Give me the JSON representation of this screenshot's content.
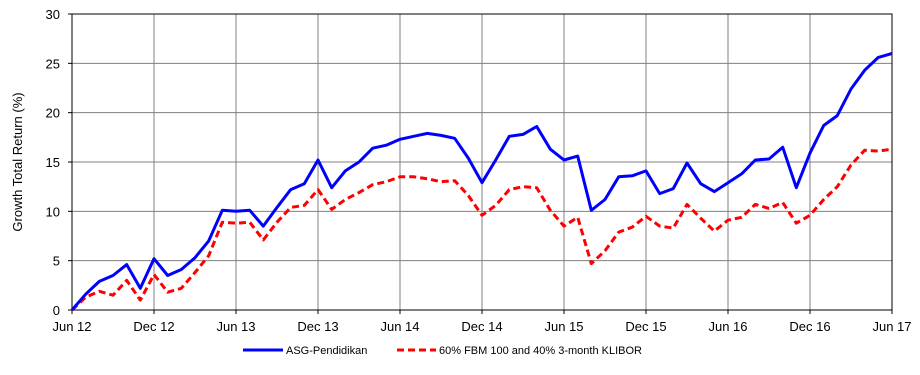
{
  "chart_data": {
    "type": "line",
    "ylabel": "Growth Total Return (%)",
    "xlabel": "",
    "ylim": [
      0,
      30
    ],
    "yticks": [
      0,
      5,
      10,
      15,
      20,
      25,
      30
    ],
    "xlim": [
      0,
      60
    ],
    "xticks": [
      {
        "x": 0,
        "label": "Jun 12"
      },
      {
        "x": 6,
        "label": "Dec 12"
      },
      {
        "x": 12,
        "label": "Jun 13"
      },
      {
        "x": 18,
        "label": "Dec 13"
      },
      {
        "x": 24,
        "label": "Jun 14"
      },
      {
        "x": 30,
        "label": "Dec 14"
      },
      {
        "x": 36,
        "label": "Jun 15"
      },
      {
        "x": 42,
        "label": "Dec 15"
      },
      {
        "x": 48,
        "label": "Jun 16"
      },
      {
        "x": 54,
        "label": "Dec 16"
      },
      {
        "x": 60,
        "label": "Jun 17"
      }
    ],
    "grid": true,
    "legend_position": "bottom",
    "series": [
      {
        "name": "ASG-Pendidikan",
        "color": "#0000ff",
        "style": "solid",
        "values": [
          0,
          1.6,
          2.9,
          3.5,
          4.6,
          2.2,
          5.2,
          3.5,
          4.1,
          5.3,
          7.0,
          10.1,
          10.0,
          10.1,
          8.5,
          10.4,
          12.2,
          12.8,
          15.2,
          12.4,
          14.1,
          15.0,
          16.4,
          16.7,
          17.3,
          17.6,
          17.9,
          17.7,
          17.4,
          15.4,
          12.9,
          15.2,
          17.6,
          17.8,
          18.6,
          16.3,
          15.2,
          15.6,
          10.1,
          11.2,
          13.5,
          13.6,
          14.1,
          11.8,
          12.3,
          14.9,
          12.8,
          12.0,
          12.9,
          13.8,
          15.2,
          15.3,
          16.5,
          12.4,
          15.9,
          18.7,
          19.7,
          22.4,
          24.3,
          25.6,
          26.0
        ]
      },
      {
        "name": "60% FBM 100 and 40% 3-month KLIBOR",
        "color": "#ff0000",
        "style": "dashed",
        "values": [
          0,
          1.3,
          1.9,
          1.5,
          3.0,
          1.0,
          3.6,
          1.8,
          2.2,
          3.8,
          5.5,
          8.9,
          8.8,
          8.9,
          7.1,
          8.9,
          10.4,
          10.6,
          12.2,
          10.2,
          11.2,
          11.9,
          12.7,
          13.0,
          13.5,
          13.5,
          13.3,
          13.0,
          13.1,
          11.6,
          9.6,
          10.6,
          12.2,
          12.5,
          12.4,
          10.1,
          8.5,
          9.4,
          4.7,
          6.0,
          7.9,
          8.4,
          9.5,
          8.5,
          8.3,
          10.7,
          9.3,
          8.0,
          9.1,
          9.4,
          10.7,
          10.3,
          10.9,
          8.8,
          9.6,
          11.2,
          12.5,
          14.7,
          16.2,
          16.1,
          16.3
        ]
      }
    ]
  }
}
